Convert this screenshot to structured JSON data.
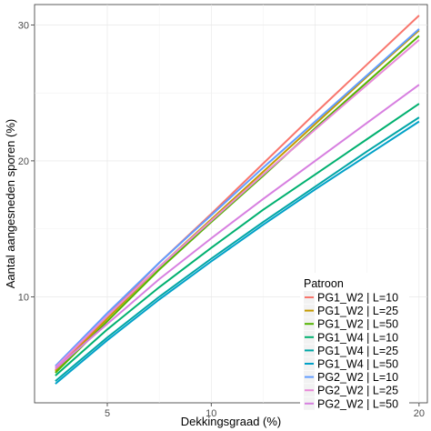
{
  "chart_data": {
    "type": "line",
    "xlabel": "Dekkingsgraad (%)",
    "ylabel": "Aantal aangesneden sporen (%)",
    "xlim": [
      1.5,
      20.4
    ],
    "ylim": [
      2.2,
      31.5
    ],
    "xticks": [
      5,
      10,
      15,
      20
    ],
    "yticks": [
      10,
      20,
      30
    ],
    "xtick_labels": [
      "5",
      "10",
      "15",
      "20"
    ],
    "ytick_labels": [
      "10",
      "20",
      "30"
    ],
    "grid": true,
    "legend": {
      "title": "Patroon",
      "placement": "bottom-right"
    },
    "series": [
      {
        "name": "PG1_W2 | L=10",
        "color": "#F8766D",
        "x": [
          2.5,
          5,
          7.5,
          10,
          12.5,
          15,
          17.5,
          20
        ],
        "y": [
          4.6,
          8.6,
          12.5,
          16.1,
          19.8,
          23.5,
          27.1,
          30.7
        ]
      },
      {
        "name": "PG1_W2 | L=25",
        "color": "#C49A00",
        "x": [
          2.5,
          5,
          7.5,
          10,
          12.5,
          15,
          17.5,
          20
        ],
        "y": [
          4.5,
          8.4,
          12.2,
          15.7,
          19.2,
          22.7,
          26.2,
          29.6
        ]
      },
      {
        "name": "PG1_W2 | L=50",
        "color": "#53B400",
        "x": [
          2.5,
          5,
          7.5,
          10,
          12.5,
          15,
          17.5,
          20
        ],
        "y": [
          4.4,
          8.2,
          12.0,
          15.5,
          18.9,
          22.4,
          25.8,
          29.2
        ]
      },
      {
        "name": "PG1_W4 | L=10",
        "color": "#00B06F",
        "x": [
          2.5,
          5,
          7.5,
          10,
          12.5,
          15,
          17.5,
          20
        ],
        "y": [
          4.2,
          7.6,
          10.7,
          13.6,
          16.4,
          19.0,
          21.6,
          24.2
        ]
      },
      {
        "name": "PG1_W4 | L=25",
        "color": "#00A6A6",
        "x": [
          2.5,
          5,
          7.5,
          10,
          12.5,
          15,
          17.5,
          20
        ],
        "y": [
          3.8,
          7.0,
          10.0,
          12.8,
          15.5,
          18.1,
          20.7,
          23.2
        ]
      },
      {
        "name": "PG1_W4 | L=50",
        "color": "#00A1C8",
        "x": [
          2.5,
          5,
          7.5,
          10,
          12.5,
          15,
          17.5,
          20
        ],
        "y": [
          3.6,
          6.8,
          9.8,
          12.6,
          15.3,
          17.9,
          20.4,
          22.9
        ]
      },
      {
        "name": "PG2_W2 | L=10",
        "color": "#619CFF",
        "x": [
          2.5,
          5,
          7.5,
          10,
          12.5,
          15,
          17.5,
          20
        ],
        "y": [
          4.9,
          8.8,
          12.5,
          16.0,
          19.5,
          22.9,
          26.3,
          29.7
        ]
      },
      {
        "name": "PG2_W2 | L=25",
        "color": "#E88AD8",
        "x": [
          2.5,
          5,
          7.5,
          10,
          12.5,
          15,
          17.5,
          20
        ],
        "y": [
          4.8,
          8.6,
          12.2,
          15.6,
          19.0,
          22.3,
          25.6,
          28.9
        ]
      },
      {
        "name": "PG2_W2 | L=50",
        "color": "#D77FE0",
        "x": [
          2.5,
          5,
          7.5,
          10,
          12.5,
          15,
          17.5,
          20
        ],
        "y": [
          4.7,
          8.0,
          11.3,
          14.3,
          17.2,
          20.0,
          22.8,
          25.6
        ]
      }
    ]
  }
}
